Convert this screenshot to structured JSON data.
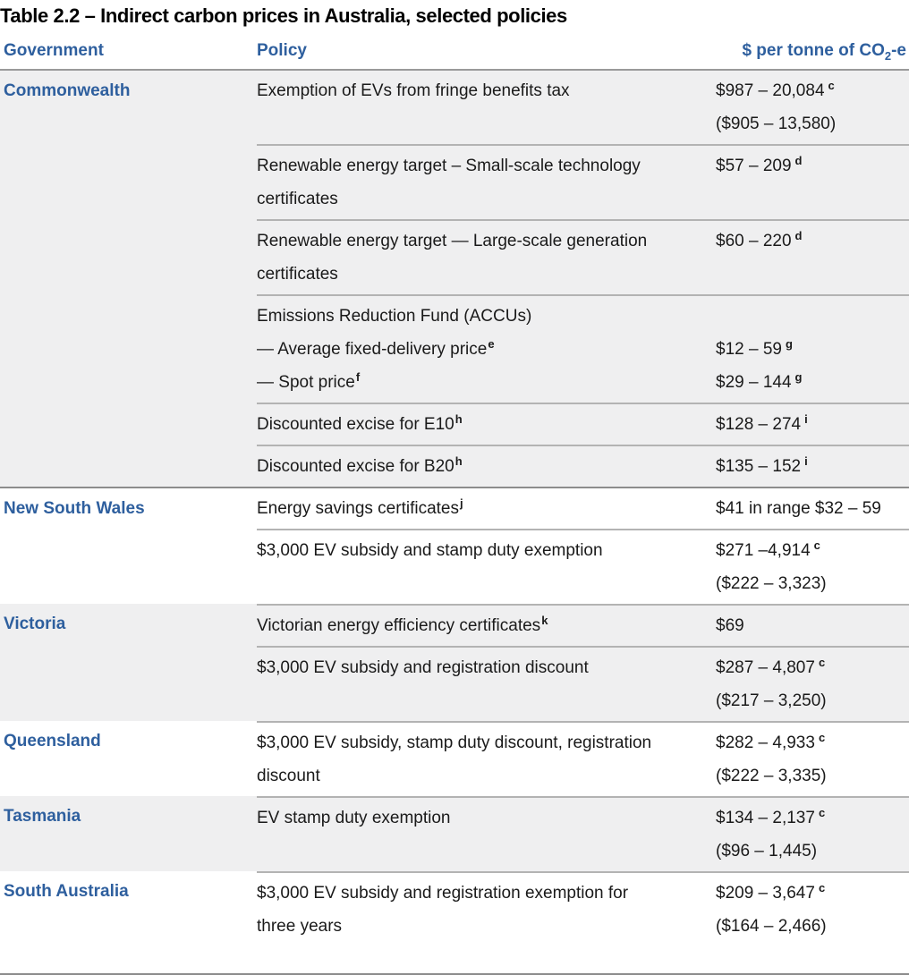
{
  "page_title": "Table 2.2 – Indirect carbon prices in Australia, selected policies",
  "columns": {
    "government": "Government",
    "policy": "Policy",
    "price_prefix": "$ per tonne of CO",
    "price_sub": "2",
    "price_suffix": "-e"
  },
  "colors": {
    "heading_blue": "#2e5f9e",
    "band_gray": "#efeff0",
    "rule_dark": "#8c8c8c",
    "rule_light": "#b3b3b3",
    "text": "#1a1a1a"
  },
  "groups": [
    {
      "government": "Commonwealth",
      "rows": [
        {
          "segments": [
            {
              "policy": "Exemption of EVs from fringe benefits tax",
              "policy_sup": "",
              "price": "$987 – 20,084",
              "price_sup": "c",
              "price_paren": "($905 – 13,580)"
            }
          ]
        },
        {
          "segments": [
            {
              "policy": "Renewable energy target – Small-scale technology certificates",
              "policy_sup": "",
              "price": "$57 – 209",
              "price_sup": "d",
              "price_paren": ""
            }
          ]
        },
        {
          "segments": [
            {
              "policy": "Renewable energy target — Large-scale generation certificates",
              "policy_sup": "",
              "price": "$60 – 220",
              "price_sup": "d",
              "price_paren": ""
            }
          ]
        },
        {
          "segments": [
            {
              "policy": "Emissions Reduction Fund (ACCUs)",
              "policy_sup": "",
              "price": "",
              "price_sup": "",
              "price_paren": ""
            },
            {
              "policy": "— Average fixed-delivery price",
              "policy_sup": "e",
              "price": "$12 – 59",
              "price_sup": "g",
              "price_paren": ""
            },
            {
              "policy": "— Spot price",
              "policy_sup": "f",
              "price": "$29 – 144",
              "price_sup": "g",
              "price_paren": ""
            }
          ]
        },
        {
          "segments": [
            {
              "policy": "Discounted excise for E10",
              "policy_sup": "h",
              "price": "$128 – 274",
              "price_sup": "i",
              "price_paren": ""
            }
          ]
        },
        {
          "segments": [
            {
              "policy": "Discounted excise for B20",
              "policy_sup": "h",
              "price": "$135 – 152",
              "price_sup": "i",
              "price_paren": ""
            }
          ]
        }
      ]
    },
    {
      "government": "New South Wales",
      "rows": [
        {
          "segments": [
            {
              "policy": "Energy savings certificates",
              "policy_sup": "j",
              "price": "$41 in range $32 – 59",
              "price_sup": "",
              "price_paren": ""
            }
          ]
        },
        {
          "segments": [
            {
              "policy": "$3,000 EV subsidy and stamp duty exemption",
              "policy_sup": "",
              "price": "$271 –4,914",
              "price_sup": "c",
              "price_paren": "($222 – 3,323)"
            }
          ]
        }
      ]
    },
    {
      "government": "Victoria",
      "rows": [
        {
          "segments": [
            {
              "policy": "Victorian energy efficiency certificates",
              "policy_sup": "k",
              "price": "$69",
              "price_sup": "",
              "price_paren": ""
            }
          ]
        },
        {
          "segments": [
            {
              "policy": "$3,000 EV subsidy and registration discount",
              "policy_sup": "",
              "price": "$287 – 4,807",
              "price_sup": "c",
              "price_paren": "($217 – 3,250)"
            }
          ]
        }
      ]
    },
    {
      "government": "Queensland",
      "rows": [
        {
          "segments": [
            {
              "policy": "$3,000 EV subsidy, stamp duty discount, registration discount",
              "policy_sup": "",
              "price": "$282 – 4,933",
              "price_sup": "c",
              "price_paren": "($222 – 3,335)"
            }
          ]
        }
      ]
    },
    {
      "government": "Tasmania",
      "rows": [
        {
          "segments": [
            {
              "policy": "EV stamp duty exemption",
              "policy_sup": "",
              "price": "$134 – 2,137",
              "price_sup": "c",
              "price_paren": "($96 – 1,445)"
            }
          ]
        }
      ]
    },
    {
      "government": "South Australia",
      "rows": [
        {
          "segments": [
            {
              "policy": "$3,000 EV subsidy and registration exemption for three years",
              "policy_sup": "",
              "price": "$209 – 3,647",
              "price_sup": "c",
              "price_paren": "($164 – 2,466)"
            }
          ]
        }
      ]
    }
  ]
}
